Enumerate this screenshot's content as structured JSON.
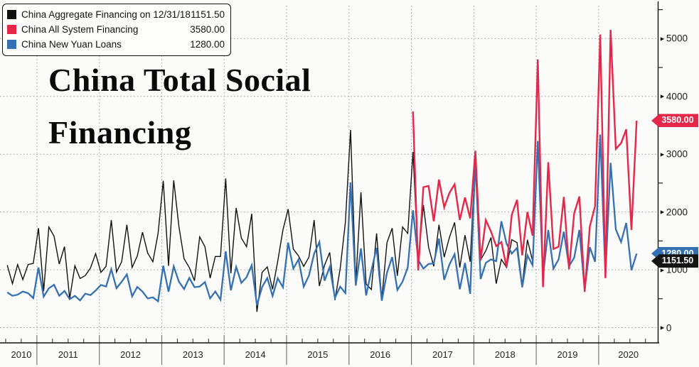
{
  "title": "China Total Social Financing",
  "legend": {
    "series": [
      {
        "name": "China Aggregate Financing on 12/31/18",
        "value": "1151.50",
        "color": "#111111"
      },
      {
        "name": "China All System Financing",
        "value": "3580.00",
        "color": "#e5274a"
      },
      {
        "name": "China New Yuan Loans",
        "value": "1280.00",
        "color": "#3570b3"
      }
    ]
  },
  "y_axis": {
    "ticks": [
      {
        "label": "0",
        "value": 0
      },
      {
        "label": "1000",
        "value": 1000
      },
      {
        "label": "2000",
        "value": 2000
      },
      {
        "label": "3000",
        "value": 3000
      },
      {
        "label": "4000",
        "value": 4000
      },
      {
        "label": "5000",
        "value": 5000
      }
    ],
    "minor_tick_values": [
      500,
      1500,
      2500,
      3500,
      4500,
      5500
    ]
  },
  "x_axis": {
    "years": [
      "2010",
      "2011",
      "2012",
      "2013",
      "2014",
      "2015",
      "2016",
      "2017",
      "2018",
      "2019",
      "2020"
    ]
  },
  "badges": [
    {
      "label": "3580.00",
      "value": 3580,
      "color": "#e5274a"
    },
    {
      "label": "1280.00",
      "value": 1280,
      "color": "#3570b3"
    },
    {
      "label": "1151.50",
      "value": 1151.5,
      "color": "#141414"
    }
  ],
  "chart_data": {
    "type": "line",
    "x_unit": "month",
    "x_start": "2010-07",
    "x_end": "2020-08",
    "ylim": [
      0,
      5500
    ],
    "grid": "dotted",
    "legend_position": "top-left",
    "series": [
      {
        "name": "China Aggregate Financing on 12/31/18",
        "color": "#111111",
        "width": 1.4,
        "start_month_index": 0,
        "values": [
          1080,
          760,
          1090,
          830,
          1090,
          1110,
          1720,
          630,
          1740,
          1580,
          1100,
          1400,
          500,
          1070,
          850,
          900,
          1030,
          1280,
          955,
          1060,
          1860,
          960,
          1140,
          1780,
          1040,
          1240,
          1650,
          1290,
          1140,
          1630,
          2540,
          1070,
          2550,
          1750,
          1190,
          1040,
          810,
          1570,
          1400,
          856,
          1230,
          1230,
          2580,
          939,
          2070,
          1550,
          1400,
          1970,
          273,
          957,
          1050,
          663,
          1150,
          1690,
          2050,
          1360,
          1240,
          1060,
          1220,
          1860,
          719,
          1080,
          1300,
          477,
          1020,
          1820,
          3420,
          780,
          2340,
          751,
          660,
          1630,
          488,
          1470,
          1720,
          896,
          1740,
          1630,
          3040,
          1150,
          2120,
          1390,
          1060,
          1780,
          1220,
          1560,
          1820,
          1040,
          1600,
          1140,
          2930,
          1170,
          1330,
          1560,
          760,
          1180,
          1040,
          1520,
          1470,
          730,
          1520,
          1151.5
        ]
      },
      {
        "name": "China All System Financing",
        "color": "#e5274a",
        "width": 2.4,
        "start_month_index": 78,
        "values": [
          3740,
          990,
          2430,
          2450,
          1840,
          2560,
          2080,
          2330,
          2480,
          1860,
          2250,
          1890,
          3060,
          1170,
          1860,
          1660,
          1410,
          1480,
          1040,
          1950,
          2210,
          1250,
          2000,
          1590,
          4640,
          700,
          2860,
          1360,
          1400,
          2260,
          1010,
          1980,
          2270,
          619,
          1750,
          2100,
          5070,
          855,
          5150,
          3090,
          3190,
          3430,
          1690,
          3580
        ]
      },
      {
        "name": "China New Yuan Loans",
        "color": "#3570b3",
        "width": 2.3,
        "start_month_index": 0,
        "values": [
          610,
          550,
          570,
          625,
          595,
          510,
          1040,
          536,
          679,
          740,
          552,
          634,
          493,
          549,
          470,
          587,
          562,
          641,
          738,
          711,
          1010,
          682,
          793,
          920,
          540,
          704,
          623,
          505,
          523,
          455,
          1070,
          620,
          1060,
          793,
          667,
          860,
          700,
          711,
          787,
          506,
          625,
          483,
          1320,
          645,
          1050,
          775,
          871,
          1080,
          385,
          703,
          857,
          548,
          853,
          697,
          1470,
          1020,
          1180,
          708,
          901,
          1280,
          1480,
          810,
          1050,
          514,
          709,
          598,
          2510,
          727,
          1370,
          556,
          985,
          1380,
          464,
          949,
          1220,
          651,
          795,
          1040,
          2030,
          1170,
          1020,
          1100,
          1110,
          1540,
          826,
          1090,
          1270,
          663,
          1120,
          584,
          2900,
          839,
          1120,
          1180,
          1150,
          1840,
          1450,
          1280,
          1380,
          697,
          1250,
          1080,
          3230,
          886,
          1690,
          1020,
          1180,
          1660,
          1060,
          1210,
          1690,
          661,
          1390,
          1140,
          3340,
          906,
          2850,
          1700,
          1480,
          1810,
          992,
          1280
        ]
      }
    ]
  }
}
